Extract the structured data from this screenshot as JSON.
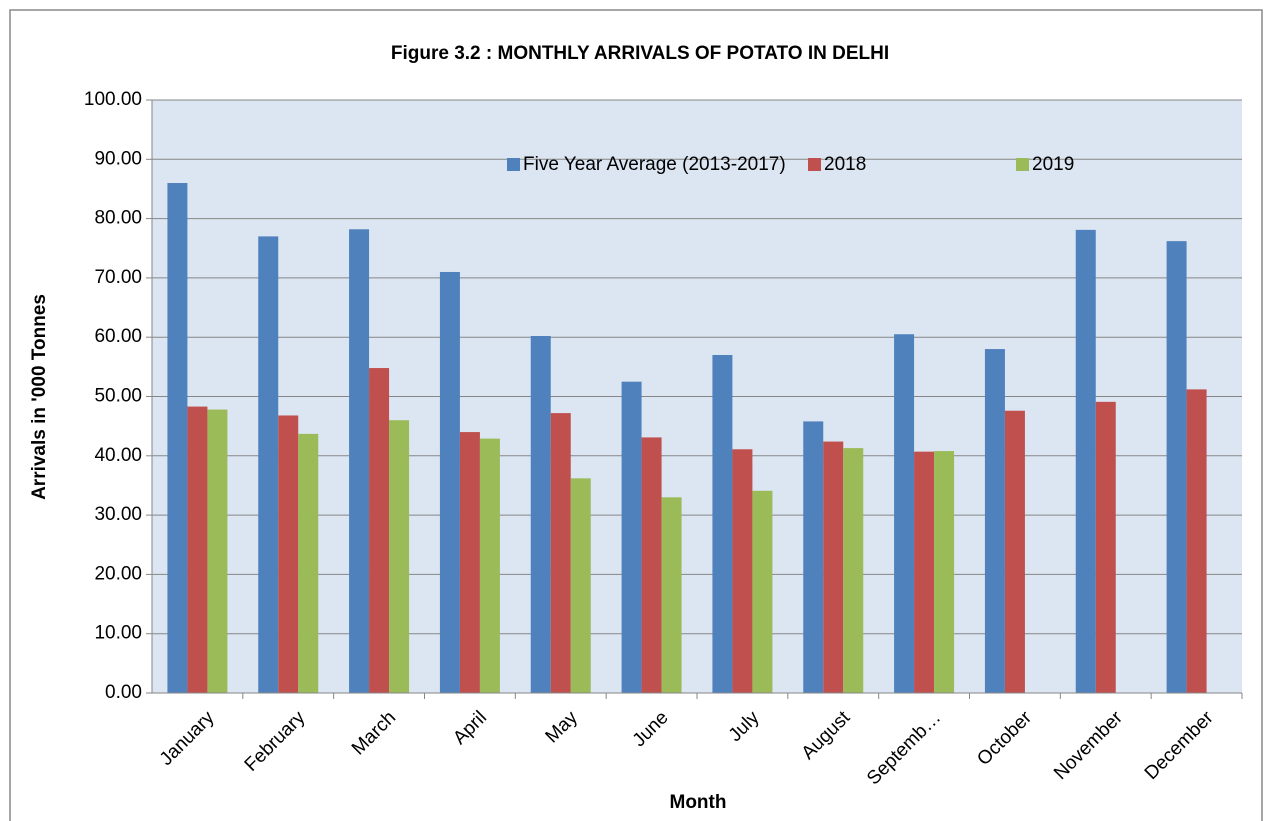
{
  "chart_data": {
    "type": "bar",
    "title": "Figure 3.2 :  MONTHLY ARRIVALS OF POTATO IN DELHI",
    "y_label": "Arrivals in '000 Tonnes",
    "x_label": "Month",
    "categories": [
      "January",
      "February",
      "March",
      "April",
      "May",
      "June",
      "July",
      "August",
      "Septemb…",
      "October",
      "November",
      "December"
    ],
    "series": [
      {
        "name": "Five Year Average (2013-2017)",
        "color": "#4f81bd",
        "values": [
          86,
          77,
          78.2,
          71,
          60.2,
          52.5,
          57,
          45.8,
          60.5,
          58,
          78.1,
          76.2
        ]
      },
      {
        "name": "2018",
        "color": "#c0504d",
        "values": [
          48.3,
          46.8,
          54.8,
          44,
          47.2,
          43.1,
          41.1,
          42.4,
          40.7,
          47.6,
          49.1,
          51.2
        ]
      },
      {
        "name": "2019",
        "color": "#9bbb59",
        "values": [
          47.8,
          43.7,
          46,
          42.9,
          36.2,
          33,
          34.1,
          41.3,
          40.8,
          null,
          null,
          null
        ]
      }
    ],
    "ylim": [
      0,
      100
    ],
    "yticks": [
      {
        "value": 0,
        "label": "0.00"
      },
      {
        "value": 10,
        "label": "10.00"
      },
      {
        "value": 20,
        "label": "20.00"
      },
      {
        "value": 30,
        "label": "30.00"
      },
      {
        "value": 40,
        "label": "40.00"
      },
      {
        "value": 50,
        "label": "50.00"
      },
      {
        "value": 60,
        "label": "60.00"
      },
      {
        "value": 70,
        "label": "70.00"
      },
      {
        "value": 80,
        "label": "80.00"
      },
      {
        "value": 90,
        "label": "90.00"
      },
      {
        "value": 100,
        "label": "100.00"
      }
    ],
    "grid": true,
    "legend": "top"
  }
}
